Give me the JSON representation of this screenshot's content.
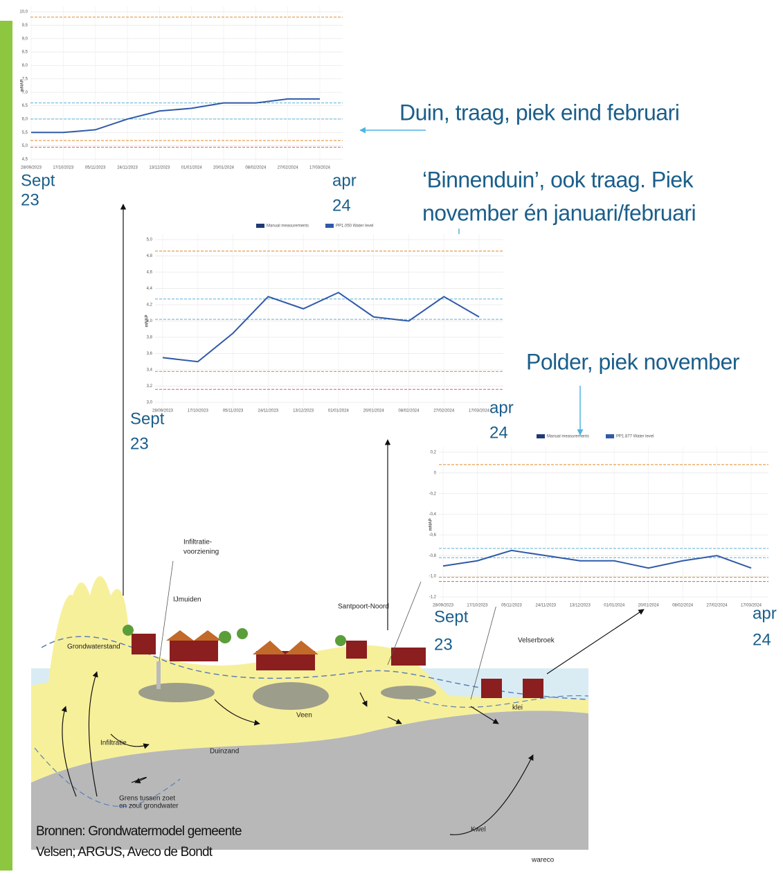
{
  "chart_data": [
    {
      "type": "line",
      "y_label": "mNAP",
      "x": [
        "28/09/2023",
        "17/10/2023",
        "05/11/2023",
        "24/11/2023",
        "13/12/2023",
        "01/01/2024",
        "20/01/2024",
        "08/02/2024",
        "27/02/2024",
        "17/03/2024"
      ],
      "series": [
        {
          "color": "#2f5aa8",
          "values": [
            5.5,
            5.5,
            5.6,
            6.0,
            6.3,
            6.4,
            6.6,
            6.6,
            6.75,
            6.75
          ]
        }
      ],
      "ylim": [
        4.5,
        10
      ],
      "yticks": [
        {
          "value": 4.5,
          "label": "4,5"
        },
        {
          "value": 5,
          "label": "5,0"
        },
        {
          "value": 5.5,
          "label": "5,5"
        },
        {
          "value": 6,
          "label": "6,0"
        },
        {
          "value": 6.5,
          "label": "6,5"
        },
        {
          "value": 7,
          "label": "7,0"
        },
        {
          "value": 7.5,
          "label": "7,5"
        },
        {
          "value": 8,
          "label": "8,0"
        },
        {
          "value": 8.5,
          "label": "8,5"
        },
        {
          "value": 9,
          "label": "9,0"
        },
        {
          "value": 9.5,
          "label": "9,5"
        },
        {
          "value": 10,
          "label": "10,0"
        }
      ],
      "ref_lines": [
        {
          "value": 9.8,
          "color": "#e08a2c"
        },
        {
          "value": 6.6,
          "color": "#5ab0d8"
        },
        {
          "value": 6.0,
          "color": "#5ab0d8"
        },
        {
          "value": 5.2,
          "color": "#e08a2c"
        },
        {
          "value": 4.95,
          "color": "#e05a5a"
        }
      ],
      "grid": true,
      "start_label": [
        "Sept",
        "23"
      ],
      "end_label": [
        "apr",
        "24"
      ]
    },
    {
      "type": "line",
      "y_label": "mNAP",
      "x": [
        "28/09/2023",
        "17/10/2023",
        "05/11/2023",
        "24/11/2023",
        "13/12/2023",
        "01/01/2024",
        "20/01/2024",
        "08/02/2024",
        "27/02/2024",
        "17/03/2024"
      ],
      "series": [
        {
          "name": "PP1.050 Water level",
          "color": "#2f5aa8",
          "values": [
            3.55,
            3.5,
            3.85,
            4.3,
            4.15,
            4.35,
            4.05,
            4.0,
            4.3,
            4.05
          ]
        }
      ],
      "legend_extra": "Manual measurements",
      "ylim": [
        3.0,
        5.0
      ],
      "yticks": [
        {
          "value": 3,
          "label": "3,0"
        },
        {
          "value": 3.2,
          "label": "3,2"
        },
        {
          "value": 3.4,
          "label": "3,4"
        },
        {
          "value": 3.6,
          "label": "3,6"
        },
        {
          "value": 3.8,
          "label": "3,8"
        },
        {
          "value": 4,
          "label": "4,0"
        },
        {
          "value": 4.2,
          "label": "4,2"
        },
        {
          "value": 4.4,
          "label": "4,4"
        },
        {
          "value": 4.6,
          "label": "4,6"
        },
        {
          "value": 4.8,
          "label": "4,8"
        },
        {
          "value": 5,
          "label": "5,0"
        }
      ],
      "ref_lines": [
        {
          "value": 4.86,
          "color": "#e08a2c"
        },
        {
          "value": 4.27,
          "color": "#5ab0d8"
        },
        {
          "value": 4.02,
          "color": "#5ab0d8"
        },
        {
          "value": 3.38,
          "color": "#e08a2c"
        },
        {
          "value": 3.16,
          "color": "#e05a5a"
        }
      ],
      "grid": true,
      "start_label": [
        "Sept",
        "23"
      ],
      "end_label": [
        "apr",
        "24"
      ]
    },
    {
      "type": "line",
      "y_label": "mNAP",
      "x": [
        "28/09/2023",
        "17/10/2023",
        "05/11/2023",
        "24/11/2023",
        "13/12/2023",
        "01/01/2024",
        "20/01/2024",
        "08/02/2024",
        "27/02/2024",
        "17/03/2024"
      ],
      "series": [
        {
          "name": "PP1.877 Water level",
          "color": "#2f5aa8",
          "values": [
            -0.9,
            -0.85,
            -0.75,
            -0.8,
            -0.85,
            -0.85,
            -0.92,
            -0.85,
            -0.8,
            -0.92
          ]
        }
      ],
      "legend_extra": "Manual measurements",
      "ylim": [
        -1.2,
        0.2
      ],
      "yticks": [
        {
          "value": -1.2,
          "label": "-1,2"
        },
        {
          "value": -1,
          "label": "-1,0"
        },
        {
          "value": -0.8,
          "label": "-0,8"
        },
        {
          "value": -0.6,
          "label": "-0,6"
        },
        {
          "value": -0.4,
          "label": "-0,4"
        },
        {
          "value": -0.2,
          "label": "-0,2"
        },
        0,
        {
          "value": 0.2,
          "label": "0,2"
        }
      ],
      "ref_lines": [
        {
          "value": 0.08,
          "color": "#e08a2c"
        },
        {
          "value": -0.73,
          "color": "#5ab0d8"
        },
        {
          "value": -0.82,
          "color": "#5ab0d8"
        },
        {
          "value": -1.01,
          "color": "#e08a2c"
        },
        {
          "value": -1.05,
          "color": "#e05a5a"
        }
      ],
      "grid": true,
      "start_label": [
        "Sept",
        "23"
      ],
      "end_label": [
        "apr",
        "24"
      ]
    }
  ],
  "callouts": [
    [
      "Duin, traag, piek eind februari"
    ],
    [
      "‘Binnenduin’, ook traag. Piek",
      "november én januari/februari"
    ],
    [
      "Polder, piek november"
    ]
  ],
  "diagram": {
    "labels": [
      "Infiltratie-",
      "voorziening",
      "IJmuiden",
      "Santpoort-Noord",
      "Velserbroek",
      "Grondwaterstand",
      "Veen",
      "klei",
      "Infiltratie",
      "Duinzand",
      "Grens tussen zoet",
      "en zout grondwater",
      "Kwel",
      "wareco"
    ]
  },
  "sources": [
    "Bronnen: Grondwatermodel gemeente",
    "Velsen; ARGUS, Aveco de Bondt"
  ]
}
